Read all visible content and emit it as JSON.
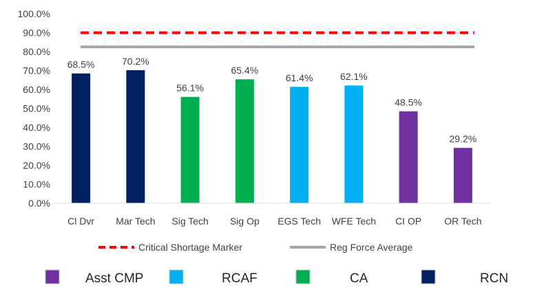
{
  "chart_data": {
    "type": "bar",
    "categories": [
      "Cl Dvr",
      "Mar Tech",
      "Sig Tech",
      "Sig Op",
      "EGS Tech",
      "WFE Tech",
      "CI OP",
      "OR Tech"
    ],
    "values": [
      68.5,
      70.2,
      56.1,
      65.4,
      61.4,
      62.1,
      48.5,
      29.2
    ],
    "value_labels": [
      "68.5%",
      "70.2%",
      "56.1%",
      "65.4%",
      "61.4%",
      "62.1%",
      "48.5%",
      "29.2%"
    ],
    "bar_groups": [
      "RCN",
      "RCN",
      "CA",
      "CA",
      "RCAF",
      "RCAF",
      "Asst CMP",
      "Asst CMP"
    ],
    "y_ticks": [
      "0.0%",
      "10.0%",
      "20.0%",
      "30.0%",
      "40.0%",
      "50.0%",
      "60.0%",
      "70.0%",
      "80.0%",
      "90.0%",
      "100.0%"
    ],
    "ylim": [
      0,
      100
    ],
    "grid": false,
    "title": "",
    "xlabel": "",
    "ylabel": "",
    "reference_lines": [
      {
        "name": "Critical Shortage Marker",
        "value": 90,
        "color": "#ff0000",
        "style": "dashed"
      },
      {
        "name": "Reg Force Average",
        "value": 82.5,
        "color": "#a6a6a6",
        "style": "solid"
      }
    ],
    "groups": [
      {
        "name": "Asst CMP",
        "color": "#7030a0"
      },
      {
        "name": "RCAF",
        "color": "#00b0f0"
      },
      {
        "name": "CA",
        "color": "#00b050"
      },
      {
        "name": "RCN",
        "color": "#002060"
      }
    ],
    "legend_placement": "bottom"
  }
}
